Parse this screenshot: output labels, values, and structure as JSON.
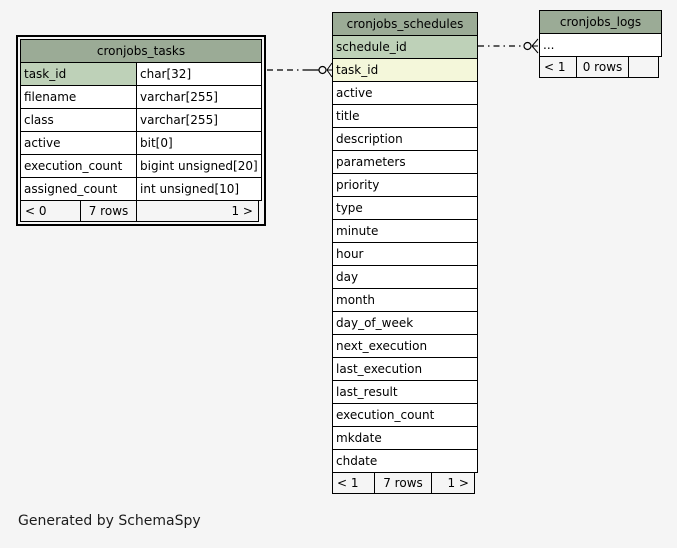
{
  "page": {
    "generator_note": "Generated by SchemaSpy",
    "background": "#f5f5f5"
  },
  "colors": {
    "table_header_bg": "#9bab96",
    "primary_key_bg": "#bed1b8",
    "indexed_column_bg": "#f4f7da",
    "cell_bg": "#ffffff",
    "border": "#000000"
  },
  "tables": [
    {
      "title": "cronjobs_tasks",
      "focus": true,
      "has_types": true,
      "columns": [
        {
          "name": "task_id",
          "type": "char[32]",
          "highlight": "pk"
        },
        {
          "name": "filename",
          "type": "varchar[255]",
          "highlight": "none"
        },
        {
          "name": "class",
          "type": "varchar[255]",
          "highlight": "none"
        },
        {
          "name": "active",
          "type": "bit[0]",
          "highlight": "none"
        },
        {
          "name": "execution_count",
          "type": "bigint unsigned[20]",
          "highlight": "none"
        },
        {
          "name": "assigned_count",
          "type": "int unsigned[10]",
          "highlight": "none"
        }
      ],
      "footer": {
        "left": "< 0",
        "center": "7 rows",
        "right": "1 >"
      }
    },
    {
      "title": "cronjobs_schedules",
      "focus": false,
      "has_types": false,
      "columns": [
        {
          "name": "schedule_id",
          "highlight": "pk"
        },
        {
          "name": "task_id",
          "highlight": "fk"
        },
        {
          "name": "active",
          "highlight": "none"
        },
        {
          "name": "title",
          "highlight": "none"
        },
        {
          "name": "description",
          "highlight": "none"
        },
        {
          "name": "parameters",
          "highlight": "none"
        },
        {
          "name": "priority",
          "highlight": "none"
        },
        {
          "name": "type",
          "highlight": "none"
        },
        {
          "name": "minute",
          "highlight": "none"
        },
        {
          "name": "hour",
          "highlight": "none"
        },
        {
          "name": "day",
          "highlight": "none"
        },
        {
          "name": "month",
          "highlight": "none"
        },
        {
          "name": "day_of_week",
          "highlight": "none"
        },
        {
          "name": "next_execution",
          "highlight": "none"
        },
        {
          "name": "last_execution",
          "highlight": "none"
        },
        {
          "name": "last_result",
          "highlight": "none"
        },
        {
          "name": "execution_count",
          "highlight": "none"
        },
        {
          "name": "mkdate",
          "highlight": "none"
        },
        {
          "name": "chdate",
          "highlight": "none"
        }
      ],
      "footer": {
        "left": "< 1",
        "center": "7 rows",
        "right": "1 >"
      }
    },
    {
      "title": "cronjobs_logs",
      "focus": false,
      "has_types": false,
      "columns": [
        {
          "name": "...",
          "highlight": "none"
        }
      ],
      "footer": {
        "left": "< 1",
        "center": "0 rows",
        "right": ""
      }
    }
  ],
  "relationships": [
    {
      "from_table": "cronjobs_tasks",
      "from_column": "task_id",
      "to_table": "cronjobs_schedules",
      "to_column": "task_id",
      "line_style": "dash-dot",
      "end_markers": "circle-crowfoot"
    },
    {
      "from_table": "cronjobs_schedules",
      "from_column": "schedule_id",
      "to_table": "cronjobs_logs",
      "to_column": "...",
      "line_style": "dash-dot",
      "end_markers": "circle-crowfoot"
    }
  ]
}
